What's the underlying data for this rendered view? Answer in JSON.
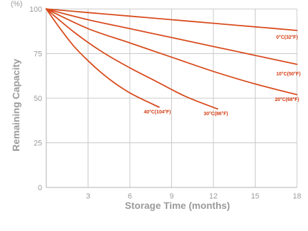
{
  "chart_data": {
    "type": "line",
    "title": "",
    "xlabel": "Storage Time (months)",
    "ylabel": "Remaining Capacity",
    "ylabel_unit": "(%)",
    "xlim": [
      0,
      18
    ],
    "ylim": [
      0,
      100
    ],
    "x_ticks": [
      "3",
      "6",
      "9",
      "12",
      "15",
      "18"
    ],
    "y_ticks": [
      "0",
      "25",
      "50",
      "75",
      "100"
    ],
    "grid": true,
    "line_color": "#d84a1c",
    "label_color": "#d23a10",
    "grid_color": "#c8c8c8",
    "series": [
      {
        "name": "0°C(32°F)",
        "x": [
          0,
          3,
          6,
          9,
          12,
          15,
          18
        ],
        "y": [
          100,
          98,
          96,
          94,
          92,
          90,
          88
        ]
      },
      {
        "name": "10°C(50°F)",
        "x": [
          0,
          3,
          6,
          9,
          12,
          15,
          18
        ],
        "y": [
          100,
          94,
          89,
          84,
          79,
          74,
          69
        ]
      },
      {
        "name": "20°C(68°F)",
        "x": [
          0,
          3,
          6,
          9,
          12,
          15,
          18
        ],
        "y": [
          100,
          89,
          81,
          73,
          65,
          58,
          52
        ]
      },
      {
        "name": "30°C(86°F)",
        "x": [
          0,
          2,
          4,
          6,
          8,
          10,
          12.3
        ],
        "y": [
          100,
          87,
          76,
          67,
          59,
          51,
          44
        ]
      },
      {
        "name": "40°C(104°F)",
        "x": [
          0,
          1,
          2,
          3,
          4,
          5,
          6,
          7,
          8.1
        ],
        "y": [
          100,
          89,
          79,
          71,
          64,
          58,
          53,
          49,
          45
        ]
      }
    ]
  }
}
